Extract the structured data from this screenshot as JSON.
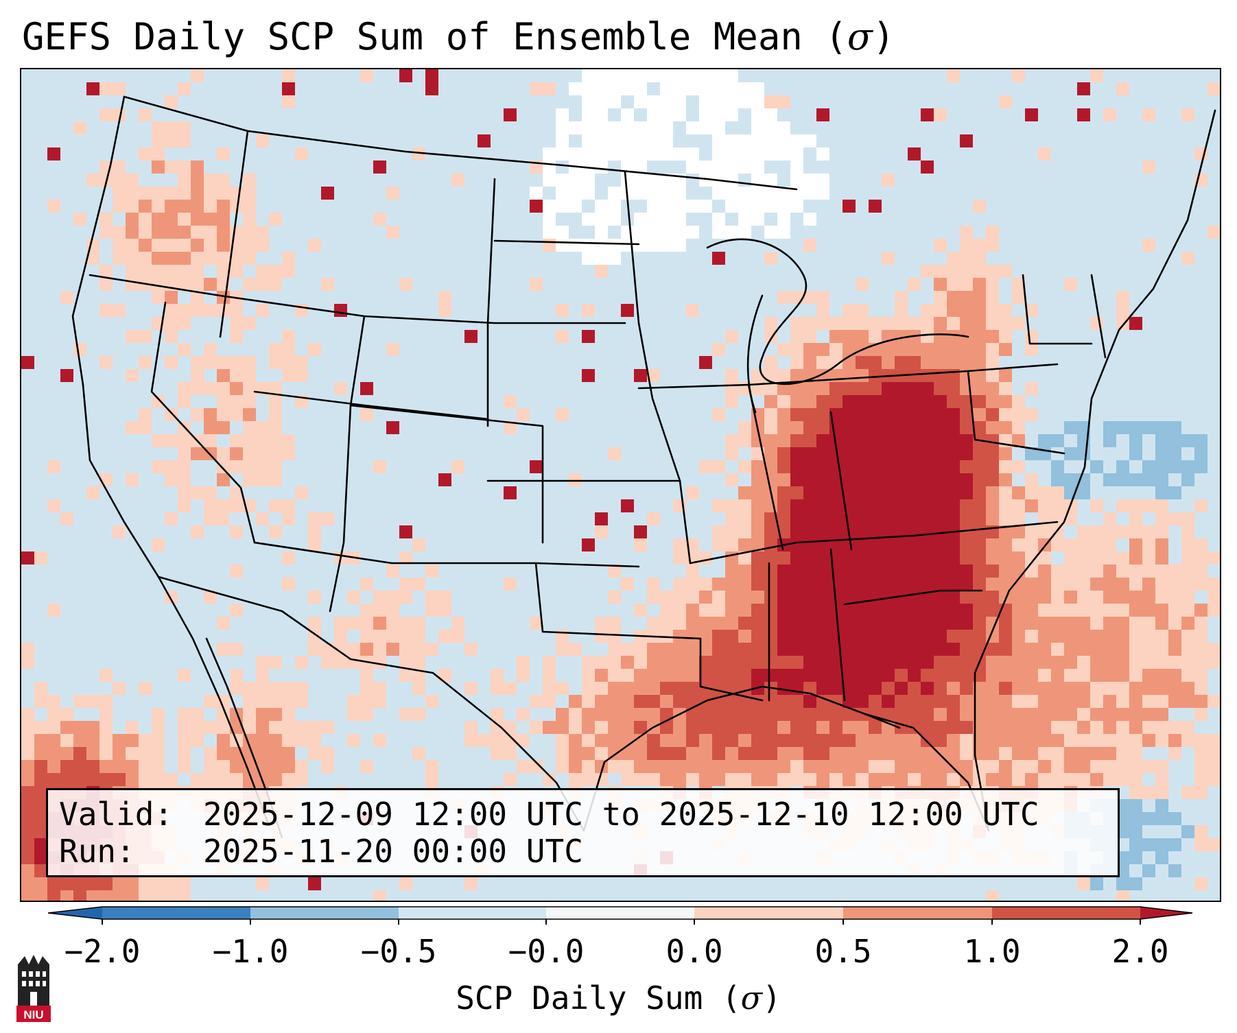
{
  "title": {
    "prefix": "GEFS Daily SCP Sum of Ensemble Mean (",
    "symbol": "σ",
    "suffix": ")"
  },
  "info": {
    "valid_label": "Valid:",
    "valid_value": "2025-12-09 12:00 UTC to 2025-12-10 12:00 UTC",
    "run_label": "Run:",
    "run_value": "2025-11-20 00:00 UTC"
  },
  "colorbar": {
    "ticks": [
      "−2.0",
      "−1.0",
      "−0.5",
      "−0.0",
      "0.0",
      "0.5",
      "1.0",
      "2.0"
    ],
    "colors": [
      "#3a7fbf",
      "#92c0dd",
      "#d2e6f1",
      "#f5f6f7",
      "#fbd3c0",
      "#ef967a",
      "#d15346",
      "#b2182b"
    ],
    "extend_min_color": "#2166ac",
    "extend_max_color": "#b2182b",
    "label_prefix": "SCP Daily Sum (",
    "label_symbol": "σ",
    "label_suffix": ")"
  },
  "map": {
    "background_color": "#d0e4f0",
    "projection": "Lambert Conformal (CONUS)",
    "region": "Continental United States"
  },
  "logo": {
    "text": "NIU",
    "brand_color": "#c8102e"
  }
}
